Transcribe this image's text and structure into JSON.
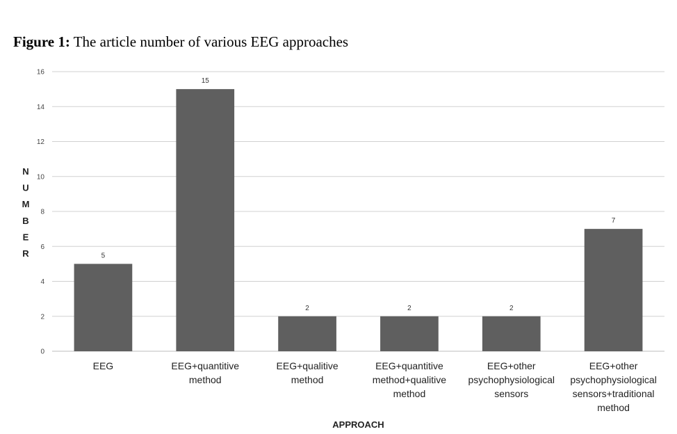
{
  "figure": {
    "label": "Figure 1:",
    "title": "The article number of various EEG approaches"
  },
  "chart_data": {
    "type": "bar",
    "categories": [
      "EEG",
      "EEG+quantitive method",
      "EEG+qualitive method",
      "EEG+quantitive method+qualitive method",
      "EEG+other psychophysiological sensors",
      "EEG+other psychophysiological sensors+traditional method"
    ],
    "category_lines": [
      [
        "EEG"
      ],
      [
        "EEG+quantitive",
        "method"
      ],
      [
        "EEG+qualitive",
        "method"
      ],
      [
        "EEG+quantitive",
        "method+qualitive",
        "method"
      ],
      [
        "EEG+other",
        "psychophysiological",
        "sensors"
      ],
      [
        "EEG+other",
        "psychophysiological",
        "sensors+traditional",
        "method"
      ]
    ],
    "values": [
      5,
      15,
      2,
      2,
      2,
      7
    ],
    "xlabel": "APPROACH",
    "ylabel": "NUMBER",
    "ylim": [
      0,
      16
    ],
    "yticks": [
      0,
      2,
      4,
      6,
      8,
      10,
      12,
      14,
      16
    ],
    "grid": true,
    "data_labels": true,
    "bar_color": "#5f5f5f",
    "grid_color": "#d0d0d0"
  }
}
